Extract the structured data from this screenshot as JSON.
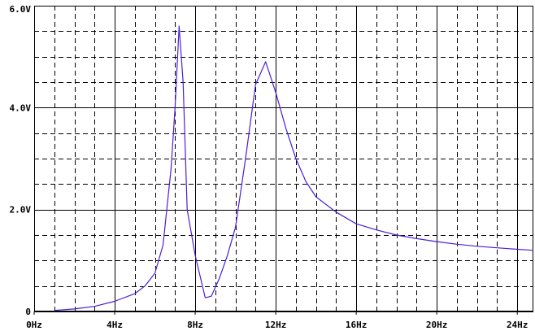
{
  "colors": {
    "background": "#ffffff",
    "axis": "#000000",
    "major_grid": "#000000",
    "minor_grid": "#000000",
    "trace": "#4b1fd6"
  },
  "chart_data": {
    "type": "line",
    "title": "",
    "xlabel": "",
    "ylabel": "",
    "xlim": [
      0,
      24.8
    ],
    "ylim": [
      0,
      6.0
    ],
    "grid": true,
    "x_ticks": [
      0,
      4,
      8,
      12,
      16,
      20,
      24
    ],
    "x_tick_labels": [
      "0Hz",
      "4Hz",
      "8Hz",
      "12Hz",
      "16Hz",
      "20Hz",
      "24Hz"
    ],
    "y_ticks": [
      0,
      2,
      4,
      6
    ],
    "y_tick_labels": [
      "0",
      "2.0V",
      "4.0V",
      "6.0V"
    ],
    "x_minor_step": 1,
    "y_minor_step": 0.5,
    "series": [
      {
        "name": "",
        "x": [
          1.0,
          2.0,
          3.0,
          4.0,
          5.0,
          5.5,
          6.0,
          6.4,
          6.8,
          7.0,
          7.2,
          7.4,
          7.6,
          8.0,
          8.5,
          8.8,
          9.2,
          9.6,
          10.0,
          10.5,
          11.0,
          11.5,
          12.0,
          12.5,
          13.0,
          13.5,
          14.0,
          15.0,
          16.0,
          17.0,
          18.0,
          19.0,
          20.0,
          21.0,
          22.0,
          23.0,
          24.0,
          24.8
        ],
        "y": [
          0.02,
          0.05,
          0.1,
          0.2,
          0.35,
          0.5,
          0.75,
          1.3,
          2.8,
          4.0,
          5.6,
          4.5,
          2.0,
          1.1,
          0.27,
          0.3,
          0.65,
          1.1,
          1.65,
          3.0,
          4.45,
          4.9,
          4.3,
          3.6,
          3.0,
          2.55,
          2.25,
          1.95,
          1.72,
          1.6,
          1.5,
          1.43,
          1.37,
          1.32,
          1.28,
          1.25,
          1.22,
          1.2
        ]
      }
    ]
  }
}
